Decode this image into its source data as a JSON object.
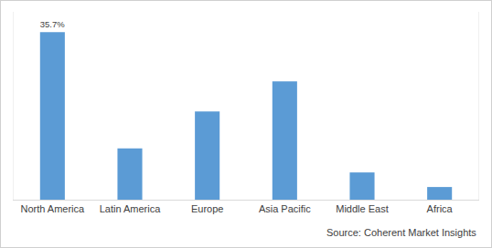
{
  "chart_data": {
    "type": "bar",
    "categories": [
      "North America",
      "Latin America",
      "Europe",
      "Asia Pacific",
      "Middle East",
      "Africa"
    ],
    "values": [
      35.7,
      10.9,
      18.8,
      25.2,
      5.8,
      2.7
    ],
    "value_labels": [
      "35.7%",
      null,
      null,
      null,
      null,
      null
    ],
    "data_labels": true,
    "color": "#5b9bd5",
    "ylim": [
      0,
      40
    ],
    "tick_labels": "x",
    "grid": false,
    "annotation": "Source: Coherent Market Insights"
  }
}
